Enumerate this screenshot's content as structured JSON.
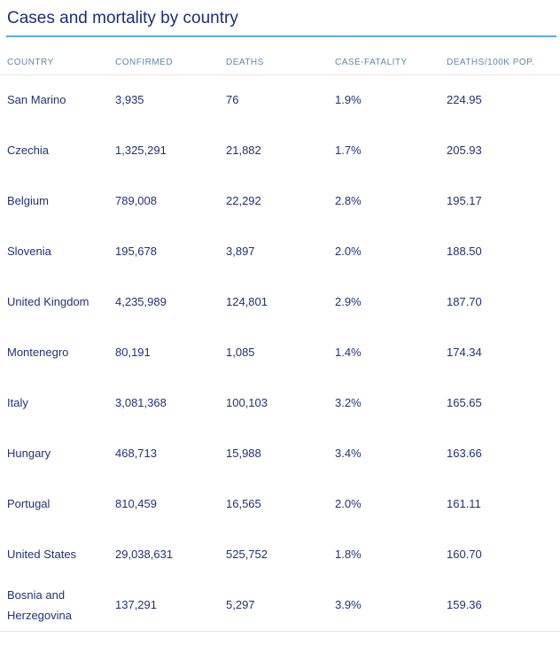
{
  "title": "Cases and mortality by country",
  "colors": {
    "title_text": "#1c2d7c",
    "title_underline": "#5ca9ee",
    "header_text": "#6286ab",
    "body_text": "#223077",
    "divider": "#e6e6e6"
  },
  "table": {
    "columns": {
      "country": "COUNTRY",
      "confirmed": "CONFIRMED",
      "deaths": "DEATHS",
      "case_fatality": "CASE-FATALITY",
      "deaths_100k": "DEATHS/100K POP."
    },
    "rows": [
      {
        "country": "San Marino",
        "confirmed": "3,935",
        "deaths": "76",
        "case_fatality": "1.9%",
        "deaths_100k": "224.95"
      },
      {
        "country": "Czechia",
        "confirmed": "1,325,291",
        "deaths": "21,882",
        "case_fatality": "1.7%",
        "deaths_100k": "205.93"
      },
      {
        "country": "Belgium",
        "confirmed": "789,008",
        "deaths": "22,292",
        "case_fatality": "2.8%",
        "deaths_100k": "195.17"
      },
      {
        "country": "Slovenia",
        "confirmed": "195,678",
        "deaths": "3,897",
        "case_fatality": "2.0%",
        "deaths_100k": "188.50"
      },
      {
        "country": "United Kingdom",
        "confirmed": "4,235,989",
        "deaths": "124,801",
        "case_fatality": "2.9%",
        "deaths_100k": "187.70"
      },
      {
        "country": "Montenegro",
        "confirmed": "80,191",
        "deaths": "1,085",
        "case_fatality": "1.4%",
        "deaths_100k": "174.34"
      },
      {
        "country": "Italy",
        "confirmed": "3,081,368",
        "deaths": "100,103",
        "case_fatality": "3.2%",
        "deaths_100k": "165.65"
      },
      {
        "country": "Hungary",
        "confirmed": "468,713",
        "deaths": "15,988",
        "case_fatality": "3.4%",
        "deaths_100k": "163.66"
      },
      {
        "country": "Portugal",
        "confirmed": "810,459",
        "deaths": "16,565",
        "case_fatality": "2.0%",
        "deaths_100k": "161.11"
      },
      {
        "country": "United States",
        "confirmed": "29,038,631",
        "deaths": "525,752",
        "case_fatality": "1.8%",
        "deaths_100k": "160.70"
      },
      {
        "country": "Bosnia and Herzegovina",
        "confirmed": "137,291",
        "deaths": "5,297",
        "case_fatality": "3.9%",
        "deaths_100k": "159.36"
      }
    ]
  },
  "chart_data": {
    "type": "table",
    "title": "Cases and mortality by country",
    "columns": [
      "COUNTRY",
      "CONFIRMED",
      "DEATHS",
      "CASE-FATALITY",
      "DEATHS/100K POP."
    ],
    "rows": [
      [
        "San Marino",
        3935,
        76,
        "1.9%",
        224.95
      ],
      [
        "Czechia",
        1325291,
        21882,
        "1.7%",
        205.93
      ],
      [
        "Belgium",
        789008,
        22292,
        "2.8%",
        195.17
      ],
      [
        "Slovenia",
        195678,
        3897,
        "2.0%",
        188.5
      ],
      [
        "United Kingdom",
        4235989,
        124801,
        "2.9%",
        187.7
      ],
      [
        "Montenegro",
        80191,
        1085,
        "1.4%",
        174.34
      ],
      [
        "Italy",
        3081368,
        100103,
        "3.2%",
        165.65
      ],
      [
        "Hungary",
        468713,
        15988,
        "3.4%",
        163.66
      ],
      [
        "Portugal",
        810459,
        16565,
        "2.0%",
        161.11
      ],
      [
        "United States",
        29038631,
        525752,
        "1.8%",
        160.7
      ],
      [
        "Bosnia and Herzegovina",
        137291,
        5297,
        "3.9%",
        159.36
      ]
    ],
    "sorted_by": "DEATHS/100K POP. descending"
  }
}
